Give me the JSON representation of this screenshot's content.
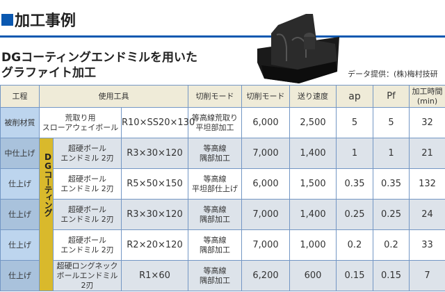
{
  "title": "加工事例",
  "subtitle_line1": "DGコーティングエンドミルを用いた",
  "subtitle_line2": "グラファイト加工",
  "credit": "データ提供：(株)梅村技研",
  "colors": {
    "accent": "#0a58b0",
    "header_bg": "#efebd8",
    "process_bg": "#bdd5ee",
    "dg_band": "#d9b92c",
    "gray_row": "#dde3ea",
    "border": "#7396c4"
  },
  "table": {
    "headers": [
      "工程",
      "使用工具",
      "切削モード",
      "切削モード",
      "送り速度",
      "ap",
      "Pf",
      "加工時間",
      "(min)"
    ],
    "dg_label": "DGコーティング",
    "rows": [
      {
        "process": "被削材質",
        "tool": "荒取り用",
        "tool2": "スローアウェイボール",
        "size": "R10×SS20×130",
        "mode": "等高線荒取り",
        "mode2": "平坦部加工",
        "rpm": "6,000",
        "feed": "2,500",
        "ap": "5",
        "pf": "5",
        "time": "32"
      },
      {
        "process": "中仕上げ",
        "tool": "超硬ボール",
        "tool2": "エンドミル 2刃",
        "size": "R3×30×120",
        "mode": "等高線",
        "mode2": "隅部加工",
        "rpm": "7,000",
        "feed": "1,400",
        "ap": "1",
        "pf": "1",
        "time": "21"
      },
      {
        "process": "仕上げ",
        "tool": "超硬ボール",
        "tool2": "エンドミル 2刃",
        "size": "R5×50×150",
        "mode": "等高線",
        "mode2": "平坦部仕上げ",
        "rpm": "6,000",
        "feed": "1,500",
        "ap": "0.35",
        "pf": "0.35",
        "time": "132"
      },
      {
        "process": "仕上げ",
        "tool": "超硬ボール",
        "tool2": "エンドミル 2刃",
        "size": "R3×30×120",
        "mode": "等高線",
        "mode2": "隅部加工",
        "rpm": "7,000",
        "feed": "1,400",
        "ap": "0.25",
        "pf": "0.25",
        "time": "24"
      },
      {
        "process": "仕上げ",
        "tool": "超硬ボール",
        "tool2": "エンドミル 2刃",
        "size": "R2×20×120",
        "mode": "等高線",
        "mode2": "隅部加工",
        "rpm": "7,000",
        "feed": "1,000",
        "ap": "0.2",
        "pf": "0.2",
        "time": "33"
      },
      {
        "process": "仕上げ",
        "tool": "超硬ロングネック",
        "tool2": "ボールエンドミル 2刃",
        "size": "R1×60",
        "mode": "等高線",
        "mode2": "隅部加工",
        "rpm": "6,200",
        "feed": "600",
        "ap": "0.15",
        "pf": "0.15",
        "time": "7"
      }
    ]
  }
}
